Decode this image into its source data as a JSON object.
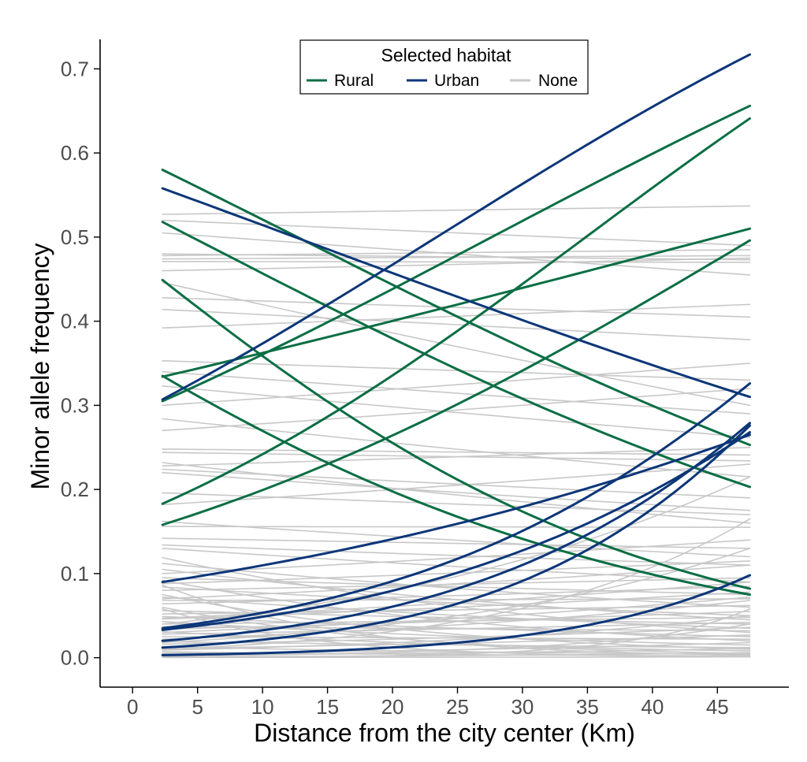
{
  "chart_data": {
    "type": "line",
    "xlabel": "Distance from the city center (Km)",
    "ylabel": "Minor allele frequency",
    "xlim": [
      -2.5,
      50.5
    ],
    "ylim": [
      -0.035,
      0.735
    ],
    "xticks": [
      0,
      5,
      10,
      15,
      20,
      25,
      30,
      35,
      40,
      45
    ],
    "xtick_labels": [
      "0",
      "5",
      "10",
      "15",
      "20",
      "25",
      "30",
      "35",
      "40",
      "45"
    ],
    "yticks": [
      0.0,
      0.1,
      0.2,
      0.3,
      0.4,
      0.5,
      0.6,
      0.7
    ],
    "ytick_labels": [
      "0.0",
      "0.1",
      "0.2",
      "0.3",
      "0.4",
      "0.5",
      "0.6",
      "0.7"
    ],
    "x_range": [
      2.3,
      47.5
    ],
    "grid": false,
    "legend": {
      "title": "Selected habitat",
      "position": "top-center",
      "entries": [
        {
          "label": "Rural",
          "color": "#0a6e44"
        },
        {
          "label": "Urban",
          "color": "#0c3678"
        },
        {
          "label": "None",
          "color": "#c8c8c8"
        }
      ]
    },
    "series": [
      {
        "name": "Rural",
        "color": "#0a6e44",
        "lines": [
          {
            "start": 0.58,
            "end": 0.253
          },
          {
            "start": 0.518,
            "end": 0.203
          },
          {
            "start": 0.449,
            "end": 0.082
          },
          {
            "start": 0.335,
            "end": 0.075
          },
          {
            "start": 0.334,
            "end": 0.51
          },
          {
            "start": 0.305,
            "end": 0.656
          },
          {
            "start": 0.183,
            "end": 0.641
          },
          {
            "start": 0.158,
            "end": 0.496
          }
        ]
      },
      {
        "name": "Urban",
        "color": "#0c3678",
        "lines": [
          {
            "start": 0.558,
            "end": 0.31
          },
          {
            "start": 0.307,
            "end": 0.717
          },
          {
            "start": 0.09,
            "end": 0.265
          },
          {
            "start": 0.035,
            "end": 0.326
          },
          {
            "start": 0.033,
            "end": 0.268
          },
          {
            "start": 0.02,
            "end": 0.279
          },
          {
            "start": 0.012,
            "end": 0.276
          },
          {
            "start": 0.003,
            "end": 0.098
          }
        ]
      },
      {
        "name": "None",
        "color": "#c8c8c8",
        "lines": [
          {
            "start": 0.527,
            "end": 0.537
          },
          {
            "start": 0.52,
            "end": 0.49
          },
          {
            "start": 0.505,
            "end": 0.455
          },
          {
            "start": 0.48,
            "end": 0.473
          },
          {
            "start": 0.478,
            "end": 0.485
          },
          {
            "start": 0.474,
            "end": 0.478
          },
          {
            "start": 0.471,
            "end": 0.47
          },
          {
            "start": 0.46,
            "end": 0.475
          },
          {
            "start": 0.446,
            "end": 0.3
          },
          {
            "start": 0.428,
            "end": 0.405
          },
          {
            "start": 0.414,
            "end": 0.378
          },
          {
            "start": 0.392,
            "end": 0.42
          },
          {
            "start": 0.353,
            "end": 0.33
          },
          {
            "start": 0.34,
            "end": 0.29
          },
          {
            "start": 0.323,
            "end": 0.262
          },
          {
            "start": 0.3,
            "end": 0.35
          },
          {
            "start": 0.284,
            "end": 0.215
          },
          {
            "start": 0.27,
            "end": 0.32
          },
          {
            "start": 0.248,
            "end": 0.241
          },
          {
            "start": 0.244,
            "end": 0.234
          },
          {
            "start": 0.232,
            "end": 0.16
          },
          {
            "start": 0.228,
            "end": 0.25
          },
          {
            "start": 0.224,
            "end": 0.19
          },
          {
            "start": 0.22,
            "end": 0.175
          },
          {
            "start": 0.196,
            "end": 0.17
          },
          {
            "start": 0.182,
            "end": 0.23
          },
          {
            "start": 0.162,
            "end": 0.12
          },
          {
            "start": 0.156,
            "end": 0.155
          },
          {
            "start": 0.142,
            "end": 0.13
          },
          {
            "start": 0.134,
            "end": 0.11
          },
          {
            "start": 0.13,
            "end": 0.09
          },
          {
            "start": 0.119,
            "end": 0.03
          },
          {
            "start": 0.112,
            "end": 0.06
          },
          {
            "start": 0.105,
            "end": 0.045
          },
          {
            "start": 0.1,
            "end": 0.14
          },
          {
            "start": 0.095,
            "end": 0.075
          },
          {
            "start": 0.092,
            "end": 0.02
          },
          {
            "start": 0.088,
            "end": 0.115
          },
          {
            "start": 0.084,
            "end": 0.05
          },
          {
            "start": 0.08,
            "end": 0.095
          },
          {
            "start": 0.075,
            "end": 0.01
          },
          {
            "start": 0.072,
            "end": 0.035
          },
          {
            "start": 0.068,
            "end": 0.07
          },
          {
            "start": 0.064,
            "end": 0.085
          },
          {
            "start": 0.06,
            "end": 0.005
          },
          {
            "start": 0.056,
            "end": 0.04
          },
          {
            "start": 0.052,
            "end": 0.062
          },
          {
            "start": 0.049,
            "end": 0.025
          },
          {
            "start": 0.046,
            "end": 0.078
          },
          {
            "start": 0.043,
            "end": 0.015
          },
          {
            "start": 0.04,
            "end": 0.048
          },
          {
            "start": 0.037,
            "end": 0.032
          },
          {
            "start": 0.034,
            "end": 0.055
          },
          {
            "start": 0.031,
            "end": 0.008
          },
          {
            "start": 0.028,
            "end": 0.042
          },
          {
            "start": 0.025,
            "end": 0.022
          },
          {
            "start": 0.022,
            "end": 0.068
          },
          {
            "start": 0.019,
            "end": 0.012
          },
          {
            "start": 0.016,
            "end": 0.036
          },
          {
            "start": 0.013,
            "end": 0.004
          },
          {
            "start": 0.011,
            "end": 0.027
          },
          {
            "start": 0.009,
            "end": 0.05
          },
          {
            "start": 0.007,
            "end": 0.002
          },
          {
            "start": 0.005,
            "end": 0.018
          },
          {
            "start": 0.003,
            "end": 0.011
          },
          {
            "start": 0.002,
            "end": 0.04
          },
          {
            "start": 0.001,
            "end": 0.006
          },
          {
            "start": 0.0,
            "end": 0.001
          },
          {
            "start": 0.0,
            "end": 0.058
          },
          {
            "start": 0.058,
            "end": 0.001
          },
          {
            "start": 0.086,
            "end": 0.003
          },
          {
            "start": 0.07,
            "end": 0.11
          },
          {
            "start": 0.047,
            "end": 0.09
          },
          {
            "start": 0.03,
            "end": 0.072
          },
          {
            "start": 0.018,
            "end": 0.13
          },
          {
            "start": 0.01,
            "end": 0.165
          },
          {
            "start": 0.04,
            "end": 0.215
          }
        ]
      }
    ]
  }
}
